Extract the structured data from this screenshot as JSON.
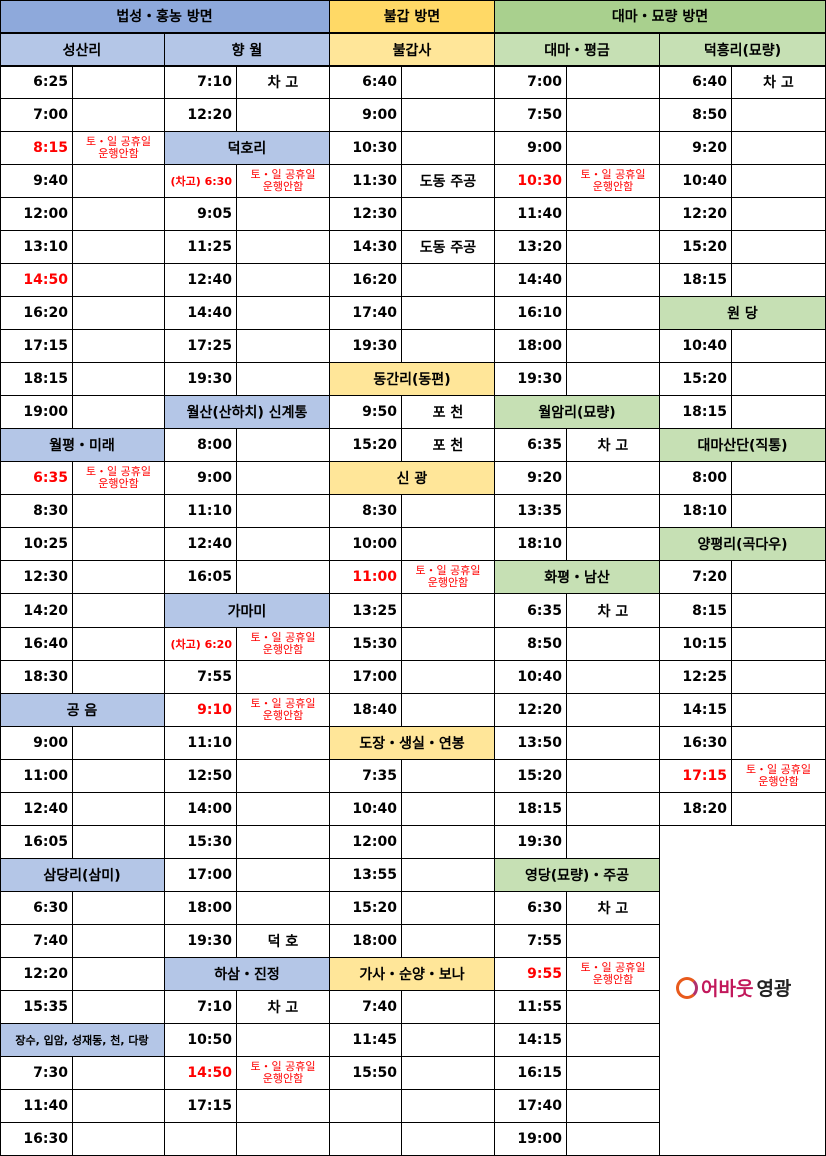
{
  "colors": {
    "blue_top": "#8EA9DB",
    "blue_sub": "#B4C6E7",
    "yellow_top": "#FFD966",
    "yellow_sub": "#FFE699",
    "green_top": "#A9D08E",
    "green_sub": "#C6E0B4",
    "red": "#FF0000"
  },
  "groups": [
    {
      "label": "법성・홍농 방면",
      "color": "blue"
    },
    {
      "label": "불갑 방면",
      "color": "yellow"
    },
    {
      "label": "대마・묘량 방면",
      "color": "green"
    }
  ],
  "note_text": "토・일 공휴일\n운행안함",
  "columns": [
    {
      "title": "성산리",
      "color": "blue",
      "rows": [
        {
          "t": "6:25"
        },
        {
          "t": "7:00"
        },
        {
          "t": "8:15",
          "red": true,
          "n": 1
        },
        {
          "t": "9:40"
        },
        {
          "t": "12:00"
        },
        {
          "t": "13:10"
        },
        {
          "t": "14:50",
          "red": true
        },
        {
          "t": "16:20"
        },
        {
          "t": "17:15"
        },
        {
          "t": "18:15"
        },
        {
          "t": "19:00"
        },
        {
          "h": "월평・미래"
        },
        {
          "t": "6:35",
          "red": true,
          "n": 1
        },
        {
          "t": "8:30"
        },
        {
          "t": "10:25"
        },
        {
          "t": "12:30"
        },
        {
          "t": "14:20"
        },
        {
          "t": "16:40"
        },
        {
          "t": "18:30"
        },
        {
          "h": "공  음"
        },
        {
          "t": "9:00"
        },
        {
          "t": "11:00"
        },
        {
          "t": "12:40"
        },
        {
          "t": "16:05"
        },
        {
          "h": "삼당리(삼미)"
        },
        {
          "t": "6:30"
        },
        {
          "t": "7:40"
        },
        {
          "t": "12:20"
        },
        {
          "t": "15:35"
        },
        {
          "h": "장수, 입암, 성재동, 천, 다랑",
          "tiny": true
        },
        {
          "t": "7:30"
        },
        {
          "t": "11:40"
        },
        {
          "t": "16:30"
        }
      ]
    },
    {
      "title": "향  월",
      "color": "blue",
      "rows": [
        {
          "t": "7:10",
          "note": "차 고"
        },
        {
          "t": "12:20"
        },
        {
          "h": "덕호리"
        },
        {
          "t": "(차고) 6:30",
          "red": true,
          "pre": true,
          "n": 1
        },
        {
          "t": "9:05"
        },
        {
          "t": "11:25"
        },
        {
          "t": "12:40"
        },
        {
          "t": "14:40"
        },
        {
          "t": "17:25"
        },
        {
          "t": "19:30"
        },
        {
          "h": "월산(산하치) 신계통"
        },
        {
          "t": "8:00"
        },
        {
          "t": "9:00"
        },
        {
          "t": "11:10"
        },
        {
          "t": "12:40"
        },
        {
          "t": "16:05"
        },
        {
          "h": "가마미"
        },
        {
          "t": "(차고) 6:20",
          "red": true,
          "pre": true,
          "n": 1
        },
        {
          "t": "7:55"
        },
        {
          "t": "9:10",
          "red": true,
          "n": 1
        },
        {
          "t": "11:10"
        },
        {
          "t": "12:50"
        },
        {
          "t": "14:00"
        },
        {
          "t": "15:30"
        },
        {
          "t": "17:00"
        },
        {
          "t": "18:00"
        },
        {
          "t": "19:30",
          "note": "덕 호"
        },
        {
          "h": "하삼・진정"
        },
        {
          "t": "7:10",
          "note": "차 고"
        },
        {
          "t": "10:50"
        },
        {
          "t": "14:50",
          "red": true,
          "n": 1
        },
        {
          "t": "17:15"
        },
        {
          "t": ""
        }
      ]
    },
    {
      "title": "불갑사",
      "color": "yellow",
      "rows": [
        {
          "t": "6:40"
        },
        {
          "t": "9:00"
        },
        {
          "t": "10:30"
        },
        {
          "t": "11:30",
          "note": "도동 주공"
        },
        {
          "t": "12:30"
        },
        {
          "t": "14:30",
          "note": "도동 주공"
        },
        {
          "t": "16:20"
        },
        {
          "t": "17:40"
        },
        {
          "t": "19:30"
        },
        {
          "h": "동간리(동편)"
        },
        {
          "t": "9:50",
          "note": "포 천"
        },
        {
          "t": "15:20",
          "note": "포 천"
        },
        {
          "h": "신  광"
        },
        {
          "t": "8:30"
        },
        {
          "t": "10:00"
        },
        {
          "t": "11:00",
          "red": true,
          "n": 1
        },
        {
          "t": "13:25"
        },
        {
          "t": "15:30"
        },
        {
          "t": "17:00"
        },
        {
          "t": "18:40"
        },
        {
          "h": "도장・생실・연봉"
        },
        {
          "t": "7:35"
        },
        {
          "t": "10:40"
        },
        {
          "t": "12:00"
        },
        {
          "t": "13:55"
        },
        {
          "t": "15:20"
        },
        {
          "t": "18:00"
        },
        {
          "h": "가사・순양・보나"
        },
        {
          "t": "7:40"
        },
        {
          "t": "11:45"
        },
        {
          "t": "15:50"
        },
        {
          "t": ""
        },
        {
          "t": ""
        }
      ]
    },
    {
      "title": "대마・평금",
      "color": "green",
      "rows": [
        {
          "t": "7:00"
        },
        {
          "t": "7:50"
        },
        {
          "t": "9:00"
        },
        {
          "t": "10:30",
          "red": true,
          "n": 1
        },
        {
          "t": "11:40"
        },
        {
          "t": "13:20"
        },
        {
          "t": "14:40"
        },
        {
          "t": "16:10"
        },
        {
          "t": "18:00"
        },
        {
          "t": "19:30"
        },
        {
          "h": "월암리(묘량)"
        },
        {
          "t": "6:35",
          "note": "차 고"
        },
        {
          "t": "9:20"
        },
        {
          "t": "13:35"
        },
        {
          "t": "18:10"
        },
        {
          "h": "화평・남산"
        },
        {
          "t": "6:35",
          "note": "차 고"
        },
        {
          "t": "8:50"
        },
        {
          "t": "10:40"
        },
        {
          "t": "12:20"
        },
        {
          "t": "13:50"
        },
        {
          "t": "15:20"
        },
        {
          "t": "18:15"
        },
        {
          "t": "19:30"
        },
        {
          "h": "영당(묘량)・주공"
        },
        {
          "t": "6:30",
          "note": "차 고"
        },
        {
          "t": "7:55"
        },
        {
          "t": "9:55",
          "red": true,
          "n": 1
        },
        {
          "t": "11:55"
        },
        {
          "t": "14:15"
        },
        {
          "t": "16:15"
        },
        {
          "t": "17:40"
        },
        {
          "t": "19:00"
        }
      ]
    },
    {
      "title": "덕흥리(묘량)",
      "color": "green",
      "rows": [
        {
          "t": "6:40",
          "note": "차 고"
        },
        {
          "t": "8:50"
        },
        {
          "t": "9:20"
        },
        {
          "t": "10:40"
        },
        {
          "t": "12:20"
        },
        {
          "t": "15:20"
        },
        {
          "t": "18:15"
        },
        {
          "h": "원  당"
        },
        {
          "t": "10:40"
        },
        {
          "t": "15:20"
        },
        {
          "t": "18:15"
        },
        {
          "h": "대마산단(직통)"
        },
        {
          "t": "8:00"
        },
        {
          "t": "18:10"
        },
        {
          "h": "양평리(곡다우)"
        },
        {
          "t": "7:20"
        },
        {
          "t": "8:15"
        },
        {
          "t": "10:15"
        },
        {
          "t": "12:25"
        },
        {
          "t": "14:15"
        },
        {
          "t": "16:30"
        },
        {
          "t": "17:15",
          "red": true,
          "n": 1
        },
        {
          "t": "18:20"
        }
      ]
    }
  ],
  "logo": {
    "text_a": "어바웃",
    "text_b": "영광"
  }
}
